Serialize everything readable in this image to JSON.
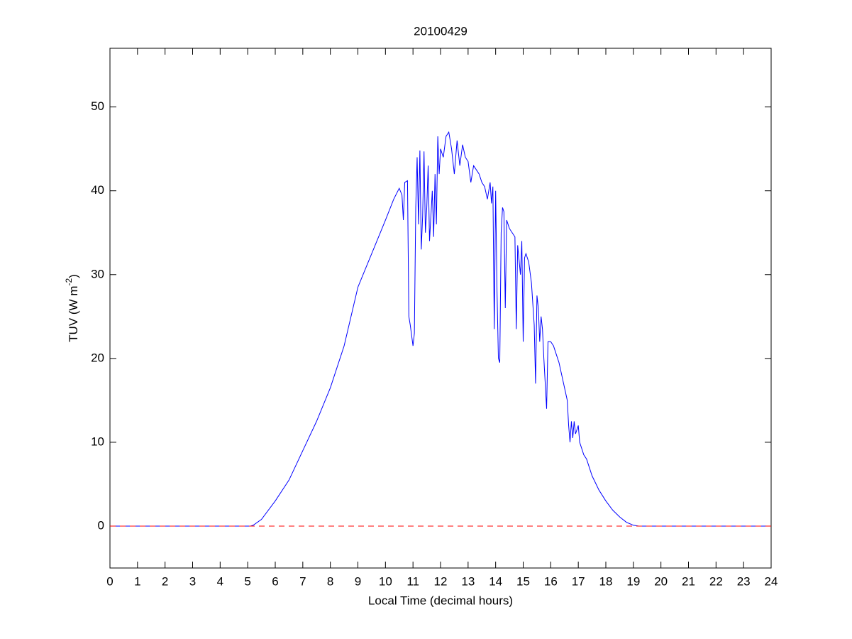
{
  "chart_data": {
    "type": "line",
    "title": "20100429",
    "xlabel": "Local Time (decimal hours)",
    "ylabel": "TUV (W m",
    "ylabel_superscript": "-2",
    "ylabel_suffix": ")",
    "xlim": [
      0,
      24
    ],
    "ylim": [
      -5,
      57
    ],
    "xticks": [
      0,
      1,
      2,
      3,
      4,
      5,
      6,
      7,
      8,
      9,
      10,
      11,
      12,
      13,
      14,
      15,
      16,
      17,
      18,
      19,
      20,
      21,
      22,
      23,
      24
    ],
    "yticks": [
      0,
      10,
      20,
      30,
      40,
      50
    ],
    "series": [
      {
        "color": "#0000ff",
        "dash": false,
        "x": [
          0,
          5.1,
          5.2,
          5.5,
          6,
          6.5,
          7,
          7.5,
          8,
          8.5,
          9,
          9.5,
          10,
          10.3,
          10.5,
          10.6,
          10.65,
          10.7,
          10.8,
          10.85,
          10.9,
          11.0,
          11.05,
          11.1,
          11.15,
          11.2,
          11.25,
          11.3,
          11.35,
          11.4,
          11.45,
          11.5,
          11.55,
          11.6,
          11.7,
          11.75,
          11.8,
          11.85,
          11.9,
          11.95,
          12.0,
          12.1,
          12.2,
          12.3,
          12.4,
          12.5,
          12.6,
          12.7,
          12.8,
          12.9,
          13.0,
          13.1,
          13.2,
          13.3,
          13.4,
          13.5,
          13.6,
          13.7,
          13.8,
          13.85,
          13.9,
          13.95,
          14.0,
          14.05,
          14.1,
          14.15,
          14.2,
          14.25,
          14.3,
          14.35,
          14.4,
          14.5,
          14.6,
          14.7,
          14.75,
          14.8,
          14.9,
          14.95,
          15.0,
          15.05,
          15.1,
          15.2,
          15.3,
          15.4,
          15.45,
          15.5,
          15.55,
          15.6,
          15.65,
          15.7,
          15.75,
          15.8,
          15.85,
          15.9,
          16.0,
          16.1,
          16.2,
          16.3,
          16.4,
          16.5,
          16.6,
          16.65,
          16.7,
          16.75,
          16.8,
          16.85,
          16.9,
          17.0,
          17.05,
          17.1,
          17.2,
          17.3,
          17.4,
          17.5,
          17.75,
          18.0,
          18.25,
          18.5,
          18.75,
          19.0,
          19.2,
          24
        ],
        "values": [
          0,
          0,
          0.1,
          0.8,
          3,
          5.5,
          9,
          12.5,
          16.5,
          21.5,
          28.5,
          32.5,
          36.5,
          39,
          40.3,
          39.5,
          36.5,
          41,
          41.2,
          25,
          24,
          21.5,
          23,
          38,
          44,
          36,
          44.8,
          33,
          37,
          44.7,
          35,
          38,
          43,
          34,
          40,
          34.5,
          42,
          36,
          46.5,
          42,
          45,
          44,
          46.5,
          47,
          45,
          42,
          46,
          43,
          45.5,
          44,
          43.5,
          41,
          43,
          42.5,
          42,
          41,
          40.5,
          39,
          41,
          38.5,
          40.5,
          23.5,
          40,
          28,
          20,
          19.5,
          35,
          38,
          37.5,
          26,
          36.5,
          35.5,
          35,
          34.5,
          23.5,
          33.5,
          30,
          34,
          22,
          32,
          32.5,
          31.5,
          29,
          24,
          17,
          27.5,
          26,
          22,
          25,
          23.5,
          20,
          17,
          14,
          22,
          22,
          21.5,
          20.5,
          19.5,
          18,
          16.5,
          15,
          12,
          10,
          12.5,
          10.5,
          12.5,
          11,
          12,
          10,
          9.5,
          8.5,
          8,
          7,
          6,
          4.3,
          3,
          1.9,
          1.1,
          0.45,
          0.1,
          0,
          0
        ]
      },
      {
        "color": "#ff0000",
        "dash": true,
        "x": [
          0,
          24
        ],
        "values": [
          0,
          0
        ]
      }
    ]
  }
}
